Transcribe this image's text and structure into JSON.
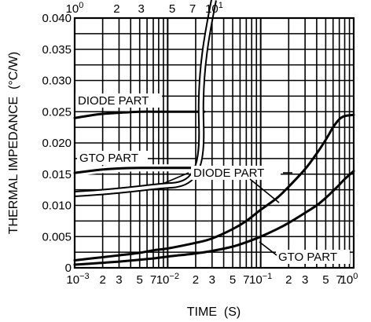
{
  "chart_data": {
    "type": "line",
    "xlabel": "TIME  (S)",
    "ylabel": "THERMAL IMPEDANCE  (°C/W)",
    "x_scale": "log",
    "xlim": [
      0.001,
      1
    ],
    "ylim": [
      0,
      0.04
    ],
    "grid": true,
    "y_ticks": [
      {
        "value": 0,
        "label": "0"
      },
      {
        "value": 0.005,
        "label": "0.005"
      },
      {
        "value": 0.01,
        "label": "0.010"
      },
      {
        "value": 0.015,
        "label": "0.015"
      },
      {
        "value": 0.02,
        "label": "0.020"
      },
      {
        "value": 0.025,
        "label": "0.025"
      },
      {
        "value": 0.03,
        "label": "0.030"
      },
      {
        "value": 0.035,
        "label": "0.035"
      },
      {
        "value": 0.04,
        "label": "0.040"
      }
    ],
    "x_ticks_bottom": [
      {
        "value": 0.001,
        "mant": "10",
        "exp": "−3"
      },
      {
        "value": 0.002,
        "mant": "2",
        "exp": ""
      },
      {
        "value": 0.003,
        "mant": "3",
        "exp": ""
      },
      {
        "value": 0.005,
        "mant": "5",
        "exp": ""
      },
      {
        "value": 0.007,
        "mant": "7",
        "exp": ""
      },
      {
        "value": 0.01,
        "mant": "10",
        "exp": "−2"
      },
      {
        "value": 0.02,
        "mant": "2",
        "exp": ""
      },
      {
        "value": 0.03,
        "mant": "3",
        "exp": ""
      },
      {
        "value": 0.05,
        "mant": "5",
        "exp": ""
      },
      {
        "value": 0.07,
        "mant": "7",
        "exp": ""
      },
      {
        "value": 0.1,
        "mant": "10",
        "exp": "−1"
      },
      {
        "value": 0.2,
        "mant": "2",
        "exp": ""
      },
      {
        "value": 0.3,
        "mant": "3",
        "exp": ""
      },
      {
        "value": 0.5,
        "mant": "5",
        "exp": ""
      },
      {
        "value": 0.7,
        "mant": "7",
        "exp": ""
      },
      {
        "value": 1,
        "mant": "10",
        "exp": "0"
      }
    ],
    "top_axis": {
      "xlim": [
        1,
        100
      ],
      "ticks": [
        {
          "value": 1,
          "mant": "10",
          "exp": "0"
        },
        {
          "value": 2,
          "mant": "2",
          "exp": ""
        },
        {
          "value": 3,
          "mant": "3",
          "exp": ""
        },
        {
          "value": 5,
          "mant": "5",
          "exp": ""
        },
        {
          "value": 7,
          "mant": "7",
          "exp": ""
        },
        {
          "value": 10,
          "mant": "10",
          "exp": "1"
        }
      ]
    },
    "series": [
      {
        "name": "DIODE PART",
        "axis": "bottom",
        "x": [
          0.001,
          0.002,
          0.003,
          0.005,
          0.007,
          0.01,
          0.02,
          0.03,
          0.05,
          0.07,
          0.1,
          0.15,
          0.2,
          0.3,
          0.4,
          0.5,
          0.6,
          0.7,
          0.8,
          1.0
        ],
        "y": [
          0.0012,
          0.0017,
          0.002,
          0.0024,
          0.0028,
          0.0031,
          0.004,
          0.0047,
          0.0062,
          0.0075,
          0.0093,
          0.0112,
          0.013,
          0.0158,
          0.0183,
          0.0205,
          0.0225,
          0.0238,
          0.0243,
          0.0245
        ]
      },
      {
        "name": "GTO PART",
        "axis": "bottom",
        "x": [
          0.001,
          0.002,
          0.003,
          0.005,
          0.007,
          0.01,
          0.02,
          0.03,
          0.05,
          0.07,
          0.1,
          0.15,
          0.2,
          0.3,
          0.4,
          0.5,
          0.6,
          0.7,
          0.8,
          1.0
        ],
        "y": [
          0.0005,
          0.0008,
          0.001,
          0.0013,
          0.0015,
          0.0018,
          0.0023,
          0.0027,
          0.0034,
          0.0041,
          0.005,
          0.0062,
          0.0072,
          0.0088,
          0.01,
          0.0112,
          0.0123,
          0.0133,
          0.0142,
          0.0155
        ]
      },
      {
        "name": "DIODE PART",
        "axis": "top",
        "x": [
          1,
          1.5,
          2,
          3,
          4,
          5,
          6,
          7,
          8.5
        ],
        "y": [
          0.024,
          0.0246,
          0.0248,
          0.025,
          0.025,
          0.025,
          0.025,
          0.025,
          0.025
        ]
      },
      {
        "name": "GTO PART",
        "axis": "top",
        "x": [
          1,
          1.5,
          2,
          3,
          4,
          5,
          6,
          7,
          8.5
        ],
        "y": [
          0.0152,
          0.0157,
          0.0159,
          0.016,
          0.016,
          0.016,
          0.016,
          0.016,
          0.016
        ]
      }
    ],
    "annotations": [
      {
        "text": "DIODE PART",
        "target": "top-axis DIODE PART curve"
      },
      {
        "text": "GTO PART",
        "target": "top-axis GTO PART curve"
      },
      {
        "text": "DIODE PART",
        "target": "bottom-axis DIODE PART curve"
      },
      {
        "text": "GTO PART",
        "target": "bottom-axis GTO PART curve"
      }
    ]
  }
}
